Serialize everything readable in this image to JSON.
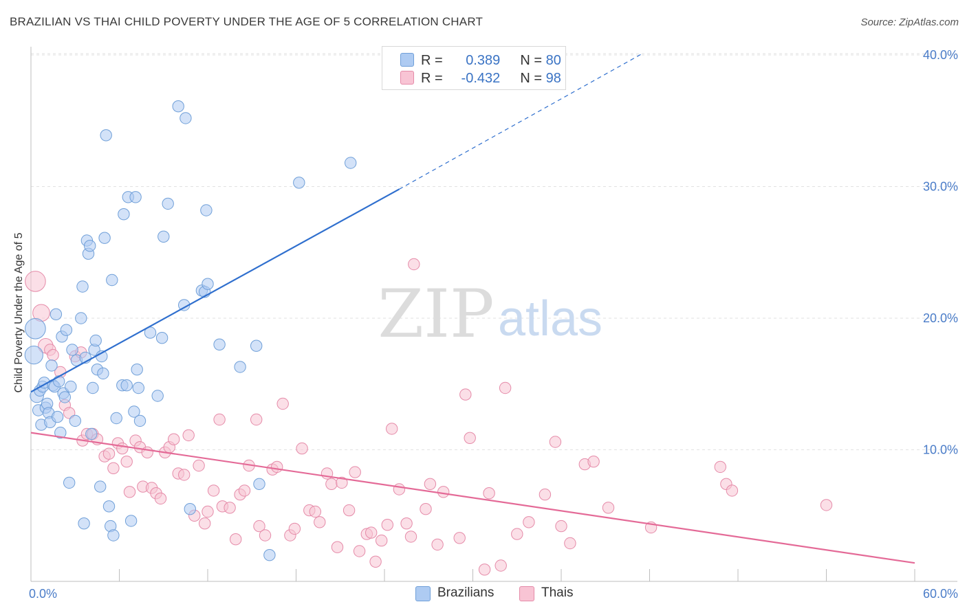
{
  "title": "BRAZILIAN VS THAI CHILD POVERTY UNDER THE AGE OF 5 CORRELATION CHART",
  "source": "Source: ZipAtlas.com",
  "watermark": {
    "zip": "ZIP",
    "atlas": "atlas"
  },
  "legend": {
    "series": [
      {
        "name": "Brazilians",
        "r_label": "R =",
        "r_value": "0.389",
        "n_label": "N =",
        "n_value": "80",
        "fill": "#aecbf2",
        "stroke": "#6f9fd8"
      },
      {
        "name": "Thais",
        "r_label": "R =",
        "r_value": "-0.432",
        "n_label": "N =",
        "n_value": "98",
        "fill": "#f8c4d4",
        "stroke": "#e58aa8"
      }
    ]
  },
  "colors": {
    "blue_line": "#2f6fce",
    "pink_line": "#e46a97",
    "tick_text": "#4a7cc8",
    "grid": "#e2e2e2"
  },
  "chart_data": {
    "type": "scatter",
    "title": "BRAZILIAN VS THAI CHILD POVERTY UNDER THE AGE OF 5 CORRELATION CHART",
    "xlabel": "",
    "ylabel": "Child Poverty Under the Age of 5",
    "xlim": [
      0,
      60
    ],
    "ylim": [
      0,
      42
    ],
    "x_tick_labels": [
      "0.0%",
      "60.0%"
    ],
    "y_ticks": [
      10,
      20,
      30,
      40
    ],
    "y_tick_labels": [
      "10.0%",
      "20.0%",
      "30.0%",
      "40.0%"
    ],
    "grid": true,
    "legend_position": "top-center",
    "series": [
      {
        "name": "Brazilians",
        "color": "#6f9fd8",
        "trend": {
          "x": [
            0,
            25
          ],
          "y": [
            14.4,
            29.8
          ],
          "extended_to": [
            41.5,
            40.1
          ]
        },
        "points": [
          [
            0.3,
            19.2,
            1.8
          ],
          [
            0.2,
            17.2,
            1.6
          ],
          [
            0.4,
            14.1,
            1.2
          ],
          [
            0.5,
            13.0,
            1.0
          ],
          [
            0.6,
            14.5,
            1.0
          ],
          [
            0.7,
            11.9,
            1.0
          ],
          [
            0.8,
            14.8,
            1.0
          ],
          [
            0.9,
            15.1,
            1.0
          ],
          [
            1.0,
            13.2,
            1.0
          ],
          [
            1.1,
            13.5,
            1.0
          ],
          [
            1.2,
            12.8,
            1.0
          ],
          [
            1.3,
            12.1,
            1.0
          ],
          [
            1.4,
            16.4,
            1.0
          ],
          [
            1.5,
            14.9,
            1.0
          ],
          [
            1.6,
            14.8,
            1.0
          ],
          [
            1.7,
            20.3,
            1.0
          ],
          [
            1.8,
            12.5,
            1.0
          ],
          [
            1.9,
            15.2,
            1.0
          ],
          [
            2.0,
            11.3,
            1.0
          ],
          [
            2.1,
            18.6,
            1.0
          ],
          [
            2.2,
            14.3,
            1.0
          ],
          [
            2.3,
            14.0,
            1.0
          ],
          [
            2.4,
            19.1,
            1.0
          ],
          [
            2.7,
            14.8,
            1.0
          ],
          [
            2.8,
            17.6,
            1.0
          ],
          [
            3.0,
            12.2,
            1.0
          ],
          [
            3.1,
            16.8,
            1.0
          ],
          [
            3.4,
            20.0,
            1.0
          ],
          [
            3.5,
            22.4,
            1.0
          ],
          [
            3.7,
            17.0,
            1.0
          ],
          [
            3.8,
            25.9,
            1.0
          ],
          [
            3.9,
            24.9,
            1.0
          ],
          [
            4.0,
            25.5,
            1.0
          ],
          [
            4.1,
            11.2,
            1.0
          ],
          [
            4.2,
            14.7,
            1.0
          ],
          [
            4.3,
            17.6,
            1.0
          ],
          [
            4.4,
            18.3,
            1.0
          ],
          [
            4.5,
            16.1,
            1.0
          ],
          [
            4.7,
            7.2,
            1.0
          ],
          [
            4.8,
            17.1,
            1.0
          ],
          [
            4.9,
            15.8,
            1.0
          ],
          [
            5.0,
            26.1,
            1.0
          ],
          [
            5.1,
            33.9,
            1.0
          ],
          [
            5.3,
            5.7,
            1.0
          ],
          [
            5.4,
            4.2,
            1.0
          ],
          [
            5.5,
            22.9,
            1.0
          ],
          [
            5.6,
            3.5,
            1.0
          ],
          [
            5.8,
            12.4,
            1.0
          ],
          [
            6.2,
            14.9,
            1.0
          ],
          [
            6.3,
            27.9,
            1.0
          ],
          [
            6.5,
            14.9,
            1.0
          ],
          [
            6.6,
            29.2,
            1.0
          ],
          [
            7.0,
            12.9,
            1.0
          ],
          [
            7.1,
            29.2,
            1.0
          ],
          [
            7.2,
            16.1,
            1.0
          ],
          [
            7.3,
            14.7,
            1.0
          ],
          [
            7.4,
            12.2,
            1.0
          ],
          [
            8.1,
            18.9,
            1.0
          ],
          [
            8.6,
            14.1,
            1.0
          ],
          [
            8.9,
            18.5,
            1.0
          ],
          [
            9.0,
            26.2,
            1.0
          ],
          [
            9.3,
            28.7,
            1.0
          ],
          [
            10.0,
            36.1,
            1.0
          ],
          [
            10.4,
            21.0,
            1.0
          ],
          [
            10.5,
            35.2,
            1.0
          ],
          [
            10.8,
            5.5,
            1.0
          ],
          [
            11.6,
            22.1,
            1.0
          ],
          [
            11.8,
            22.0,
            1.0
          ],
          [
            11.9,
            28.2,
            1.0
          ],
          [
            12.0,
            22.6,
            1.0
          ],
          [
            12.8,
            18.0,
            1.0
          ],
          [
            14.2,
            16.3,
            1.0
          ],
          [
            15.3,
            17.9,
            1.0
          ],
          [
            15.5,
            7.4,
            1.0
          ],
          [
            18.2,
            30.3,
            1.0
          ],
          [
            21.7,
            31.8,
            1.0
          ],
          [
            16.2,
            2.0,
            1.0
          ],
          [
            2.6,
            7.5,
            1.0
          ],
          [
            3.6,
            4.4,
            1.0
          ],
          [
            6.8,
            4.6,
            1.0
          ]
        ]
      },
      {
        "name": "Thais",
        "color": "#e58aa8",
        "trend": {
          "x": [
            0,
            60
          ],
          "y": [
            11.3,
            1.4
          ]
        },
        "points": [
          [
            0.3,
            22.8,
            1.8
          ],
          [
            0.7,
            20.4,
            1.5
          ],
          [
            1.0,
            17.9,
            1.3
          ],
          [
            1.3,
            17.6,
            1.0
          ],
          [
            1.5,
            17.2,
            1.0
          ],
          [
            2.0,
            15.9,
            1.0
          ],
          [
            2.3,
            13.4,
            1.0
          ],
          [
            2.6,
            12.8,
            1.0
          ],
          [
            3.0,
            17.1,
            1.0
          ],
          [
            3.4,
            17.4,
            1.0
          ],
          [
            3.5,
            10.7,
            1.0
          ],
          [
            3.8,
            11.2,
            1.0
          ],
          [
            4.2,
            11.2,
            1.0
          ],
          [
            4.5,
            10.8,
            1.0
          ],
          [
            5.0,
            9.5,
            1.0
          ],
          [
            5.3,
            9.7,
            1.0
          ],
          [
            5.6,
            8.6,
            1.0
          ],
          [
            5.9,
            10.5,
            1.0
          ],
          [
            6.2,
            10.1,
            1.0
          ],
          [
            6.5,
            9.1,
            1.0
          ],
          [
            6.7,
            6.8,
            1.0
          ],
          [
            7.1,
            10.7,
            1.0
          ],
          [
            7.4,
            10.2,
            1.0
          ],
          [
            7.6,
            7.2,
            1.0
          ],
          [
            7.9,
            9.8,
            1.0
          ],
          [
            8.2,
            7.1,
            1.0
          ],
          [
            8.5,
            6.7,
            1.0
          ],
          [
            8.8,
            6.3,
            1.0
          ],
          [
            9.1,
            9.8,
            1.0
          ],
          [
            9.4,
            10.2,
            1.0
          ],
          [
            9.7,
            10.8,
            1.0
          ],
          [
            10.0,
            8.2,
            1.0
          ],
          [
            10.4,
            8.1,
            1.0
          ],
          [
            10.7,
            11.1,
            1.0
          ],
          [
            11.1,
            5.0,
            1.0
          ],
          [
            11.4,
            8.8,
            1.0
          ],
          [
            11.8,
            4.4,
            1.0
          ],
          [
            12.0,
            5.3,
            1.0
          ],
          [
            12.4,
            6.9,
            1.0
          ],
          [
            12.8,
            12.3,
            1.0
          ],
          [
            13.0,
            5.7,
            1.0
          ],
          [
            13.5,
            5.6,
            1.0
          ],
          [
            13.9,
            3.2,
            1.0
          ],
          [
            14.2,
            6.6,
            1.0
          ],
          [
            14.5,
            6.9,
            1.0
          ],
          [
            14.8,
            8.8,
            1.0
          ],
          [
            15.3,
            12.3,
            1.0
          ],
          [
            15.5,
            4.2,
            1.0
          ],
          [
            15.9,
            3.5,
            1.0
          ],
          [
            16.4,
            8.5,
            1.0
          ],
          [
            16.7,
            8.7,
            1.0
          ],
          [
            17.1,
            13.5,
            1.0
          ],
          [
            17.6,
            3.5,
            1.0
          ],
          [
            17.9,
            4.0,
            1.0
          ],
          [
            18.4,
            10.1,
            1.0
          ],
          [
            18.9,
            5.4,
            1.0
          ],
          [
            19.3,
            5.3,
            1.0
          ],
          [
            19.6,
            4.5,
            1.0
          ],
          [
            20.1,
            8.2,
            1.0
          ],
          [
            20.4,
            7.4,
            1.0
          ],
          [
            20.8,
            2.6,
            1.0
          ],
          [
            21.1,
            7.5,
            1.0
          ],
          [
            21.6,
            5.4,
            1.0
          ],
          [
            22.0,
            8.3,
            1.0
          ],
          [
            22.3,
            2.3,
            1.0
          ],
          [
            22.8,
            3.6,
            1.0
          ],
          [
            23.1,
            3.7,
            1.0
          ],
          [
            23.4,
            1.5,
            1.0
          ],
          [
            23.8,
            3.1,
            1.0
          ],
          [
            24.2,
            4.3,
            1.0
          ],
          [
            24.5,
            11.6,
            1.0
          ],
          [
            25.0,
            7.0,
            1.0
          ],
          [
            25.5,
            4.4,
            1.0
          ],
          [
            25.8,
            3.4,
            1.0
          ],
          [
            26.0,
            24.1,
            1.0
          ],
          [
            26.8,
            5.5,
            1.0
          ],
          [
            27.1,
            7.4,
            1.0
          ],
          [
            27.6,
            2.8,
            1.0
          ],
          [
            28.0,
            6.8,
            1.0
          ],
          [
            29.1,
            3.3,
            1.0
          ],
          [
            29.5,
            14.2,
            1.0
          ],
          [
            29.8,
            10.9,
            1.0
          ],
          [
            30.8,
            0.9,
            1.0
          ],
          [
            31.1,
            6.7,
            1.0
          ],
          [
            31.9,
            1.2,
            1.0
          ],
          [
            32.2,
            14.7,
            1.0
          ],
          [
            33.0,
            3.6,
            1.0
          ],
          [
            33.8,
            4.5,
            1.0
          ],
          [
            34.9,
            6.6,
            1.0
          ],
          [
            35.6,
            10.6,
            1.0
          ],
          [
            36.0,
            4.2,
            1.0
          ],
          [
            36.6,
            2.9,
            1.0
          ],
          [
            37.6,
            8.9,
            1.0
          ],
          [
            38.2,
            9.1,
            1.0
          ],
          [
            39.2,
            5.6,
            1.0
          ],
          [
            42.1,
            4.1,
            1.0
          ],
          [
            46.8,
            8.7,
            1.0
          ],
          [
            47.2,
            7.4,
            1.0
          ],
          [
            47.6,
            6.9,
            1.0
          ],
          [
            54.0,
            5.8,
            1.0
          ]
        ]
      }
    ]
  },
  "bottom_legend": [
    "Brazilians",
    "Thais"
  ]
}
